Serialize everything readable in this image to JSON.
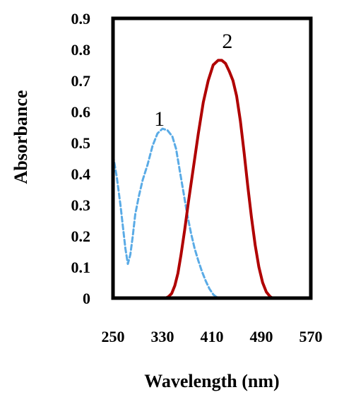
{
  "chart_data": {
    "type": "line",
    "xlabel": "Wavelength (nm)",
    "ylabel": "Absorbance",
    "xlim": [
      250,
      570
    ],
    "ylim": [
      0,
      0.9
    ],
    "xticks": [
      "250",
      "330",
      "410",
      "490",
      "570"
    ],
    "yticks": [
      "0",
      "0.1",
      "0.2",
      "0.3",
      "0.4",
      "0.5",
      "0.6",
      "0.7",
      "0.8",
      "0.9"
    ],
    "grid": false,
    "series": [
      {
        "name": "1",
        "color": "#5aabe6",
        "dash": "dashed",
        "x": [
          250,
          256,
          262,
          266,
          270,
          274,
          278,
          282,
          286,
          292,
          298,
          306,
          314,
          322,
          330,
          338,
          346,
          352,
          358,
          364,
          370,
          376,
          382,
          388,
          394,
          400,
          406,
          412,
          416,
          420,
          424,
          428
        ],
        "y": [
          0.46,
          0.39,
          0.3,
          0.23,
          0.16,
          0.11,
          0.14,
          0.2,
          0.27,
          0.33,
          0.38,
          0.43,
          0.49,
          0.53,
          0.545,
          0.54,
          0.52,
          0.48,
          0.41,
          0.34,
          0.27,
          0.21,
          0.16,
          0.12,
          0.085,
          0.055,
          0.03,
          0.012,
          0.005,
          0.002,
          0.0,
          0.0
        ]
      },
      {
        "name": "2",
        "color": "#b00000",
        "dash": "solid",
        "x": [
          330,
          335,
          340,
          345,
          350,
          355,
          360,
          366,
          372,
          380,
          388,
          396,
          404,
          412,
          420,
          426,
          432,
          438,
          444,
          450,
          456,
          462,
          468,
          474,
          480,
          486,
          492,
          498,
          504,
          508,
          512
        ],
        "y": [
          0.0,
          0.0,
          0.005,
          0.015,
          0.04,
          0.08,
          0.14,
          0.22,
          0.31,
          0.42,
          0.53,
          0.63,
          0.7,
          0.75,
          0.765,
          0.765,
          0.755,
          0.73,
          0.7,
          0.65,
          0.57,
          0.47,
          0.36,
          0.26,
          0.17,
          0.1,
          0.05,
          0.02,
          0.005,
          0.0,
          0.0
        ]
      }
    ],
    "annotations": [
      {
        "text": "1",
        "x": 325,
        "y": 0.555
      },
      {
        "text": "2",
        "x": 435,
        "y": 0.805
      }
    ]
  }
}
